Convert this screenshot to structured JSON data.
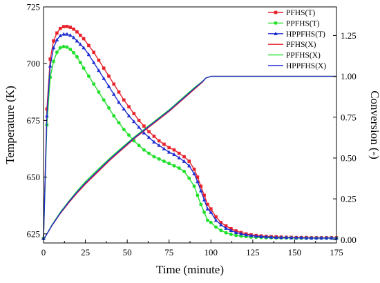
{
  "chart_data": {
    "type": "line",
    "xlabel": "Time (minute)",
    "ylabel_left": "Temperature (K)",
    "ylabel_right": "Conversion (-)",
    "xlim": [
      0,
      175
    ],
    "ylim_left": [
      621,
      725
    ],
    "ylim_right": [
      -0.02,
      1.425
    ],
    "xticks": [
      0,
      25,
      50,
      75,
      100,
      125,
      150,
      175
    ],
    "yticks_left": [
      625,
      650,
      675,
      700,
      725
    ],
    "yticks_right": [
      0.0,
      0.25,
      0.5,
      0.75,
      1.0,
      1.25
    ],
    "grid": false,
    "legend_position": "top-right",
    "series": [
      {
        "name": "PFHS(T)",
        "axis": "left",
        "color": "#e8212b",
        "marker": "square",
        "x": [
          0,
          2,
          4,
          6,
          8,
          10,
          12,
          14,
          16,
          18,
          20,
          22,
          24,
          27,
          30,
          33,
          36,
          39,
          42,
          45,
          48,
          51,
          54,
          57,
          60,
          63,
          66,
          69,
          72,
          75,
          78,
          81,
          84,
          87,
          90,
          92,
          94,
          96,
          98,
          100,
          103,
          106,
          109,
          112,
          115,
          118,
          121,
          124,
          127,
          130,
          133,
          136,
          139,
          142,
          145,
          148,
          151,
          154,
          157,
          160,
          163,
          166,
          169,
          172,
          175
        ],
        "y": [
          623,
          680,
          702,
          710,
          713.5,
          715.5,
          716.3,
          716.4,
          716,
          715.2,
          714,
          712.5,
          711,
          708,
          705,
          701.5,
          698,
          694.5,
          691,
          687.5,
          684,
          681,
          678,
          675,
          672.5,
          670,
          668,
          666,
          664.5,
          663,
          662,
          660.5,
          659,
          657,
          653.5,
          650,
          646,
          642,
          638,
          636,
          632.5,
          630,
          628.5,
          627.3,
          626.3,
          625.6,
          625,
          624.6,
          624.3,
          624.1,
          623.9,
          623.8,
          623.7,
          623.6,
          623.5,
          623.5,
          623.4,
          623.4,
          623.4,
          623.3,
          623.3,
          623.3,
          623.3,
          623.3,
          623.3
        ]
      },
      {
        "name": "PPFHS(T)",
        "axis": "left",
        "color": "#22e02c",
        "marker": "circle",
        "x": [
          0,
          2,
          4,
          6,
          8,
          10,
          12,
          14,
          16,
          18,
          20,
          22,
          24,
          27,
          30,
          33,
          36,
          39,
          42,
          45,
          48,
          51,
          54,
          57,
          60,
          63,
          66,
          69,
          72,
          75,
          78,
          81,
          84,
          87,
          90,
          92,
          94,
          96,
          98,
          100,
          103,
          106,
          109,
          112,
          115,
          118,
          121,
          124,
          127,
          130,
          133,
          136,
          139,
          142,
          145,
          148,
          151,
          154,
          157,
          160,
          163,
          166,
          169,
          172,
          175
        ],
        "y": [
          623,
          673,
          694,
          701,
          705,
          707,
          707.5,
          707.3,
          706.3,
          704.8,
          703,
          700.5,
          698,
          694.5,
          691,
          687.5,
          684,
          680.5,
          677,
          674,
          671,
          668.5,
          666,
          664,
          662,
          660.5,
          659,
          658,
          657,
          656,
          655,
          654,
          652.5,
          649.5,
          646,
          642,
          638,
          634.5,
          631,
          630,
          628,
          626.5,
          625.5,
          624.8,
          624.3,
          624,
          623.8,
          623.6,
          623.5,
          623.4,
          623.3,
          623.3,
          623.2,
          623.2,
          623.2,
          623.2,
          623.1,
          623.1,
          623.1,
          623.1,
          623.1,
          623.1,
          623.1,
          623.1,
          623.1
        ]
      },
      {
        "name": "HPPFHS(T)",
        "axis": "left",
        "color": "#1f2fd1",
        "marker": "triangle",
        "x": [
          0,
          2,
          4,
          6,
          8,
          10,
          12,
          14,
          16,
          18,
          20,
          22,
          24,
          27,
          30,
          33,
          36,
          39,
          42,
          45,
          48,
          51,
          54,
          57,
          60,
          63,
          66,
          69,
          72,
          75,
          78,
          81,
          84,
          87,
          90,
          92,
          94,
          96,
          98,
          100,
          103,
          106,
          109,
          112,
          115,
          118,
          121,
          124,
          127,
          130,
          133,
          136,
          139,
          142,
          145,
          148,
          151,
          154,
          157,
          160,
          163,
          166,
          169,
          172,
          175
        ],
        "y": [
          623,
          677,
          699,
          707,
          710.5,
          712.3,
          713,
          713,
          712.5,
          711.5,
          710,
          708.5,
          707,
          704,
          700.5,
          697,
          693.5,
          690,
          686.5,
          683,
          680,
          677,
          674.5,
          672,
          669.5,
          667.5,
          665.5,
          664,
          662.5,
          661,
          660,
          658.5,
          657,
          655,
          651.5,
          648,
          644,
          640,
          636,
          634.5,
          631,
          629,
          627.5,
          626.5,
          625.6,
          625,
          624.6,
          624.3,
          624,
          623.8,
          623.7,
          623.6,
          623.5,
          623.4,
          623.4,
          623.3,
          623.3,
          623.3,
          623.2,
          623.2,
          623.2,
          623.2,
          623.2,
          623.2,
          623.2
        ]
      },
      {
        "name": "PFHS(X)",
        "axis": "right",
        "color": "#e8212b",
        "marker": "none",
        "x": [
          0,
          5,
          10,
          15,
          20,
          25,
          30,
          35,
          40,
          45,
          50,
          55,
          60,
          65,
          70,
          75,
          80,
          85,
          90,
          95,
          97,
          100,
          110,
          120,
          130,
          140,
          150,
          160,
          170,
          175
        ],
        "y": [
          0,
          0.085,
          0.16,
          0.225,
          0.285,
          0.34,
          0.39,
          0.44,
          0.49,
          0.535,
          0.58,
          0.625,
          0.665,
          0.705,
          0.745,
          0.785,
          0.83,
          0.875,
          0.92,
          0.965,
          0.99,
          1.0,
          1.0,
          1.0,
          1.0,
          1.0,
          1.0,
          1.0,
          1.0,
          1.0
        ]
      },
      {
        "name": "PPFHS(X)",
        "axis": "right",
        "color": "#22e02c",
        "marker": "none",
        "x": [
          0,
          5,
          10,
          15,
          20,
          25,
          30,
          35,
          40,
          45,
          50,
          55,
          60,
          65,
          70,
          75,
          80,
          85,
          90,
          95,
          97,
          100,
          110,
          120,
          130,
          140,
          150,
          160,
          170,
          175
        ],
        "y": [
          0,
          0.09,
          0.168,
          0.235,
          0.297,
          0.355,
          0.405,
          0.455,
          0.502,
          0.548,
          0.592,
          0.635,
          0.675,
          0.715,
          0.755,
          0.795,
          0.84,
          0.885,
          0.93,
          0.97,
          0.99,
          1.0,
          1.0,
          1.0,
          1.0,
          1.0,
          1.0,
          1.0,
          1.0,
          1.0
        ]
      },
      {
        "name": "HPPFHS(X)",
        "axis": "right",
        "color": "#1f2fd1",
        "marker": "none",
        "x": [
          0,
          5,
          10,
          15,
          20,
          25,
          30,
          35,
          40,
          45,
          50,
          55,
          60,
          65,
          70,
          75,
          80,
          85,
          90,
          95,
          97,
          100,
          110,
          120,
          130,
          140,
          150,
          160,
          170,
          175
        ],
        "y": [
          0,
          0.087,
          0.163,
          0.23,
          0.291,
          0.347,
          0.397,
          0.447,
          0.496,
          0.541,
          0.586,
          0.63,
          0.67,
          0.71,
          0.75,
          0.79,
          0.835,
          0.88,
          0.925,
          0.968,
          0.99,
          1.0,
          1.0,
          1.0,
          1.0,
          1.0,
          1.0,
          1.0,
          1.0,
          1.0
        ]
      }
    ]
  }
}
